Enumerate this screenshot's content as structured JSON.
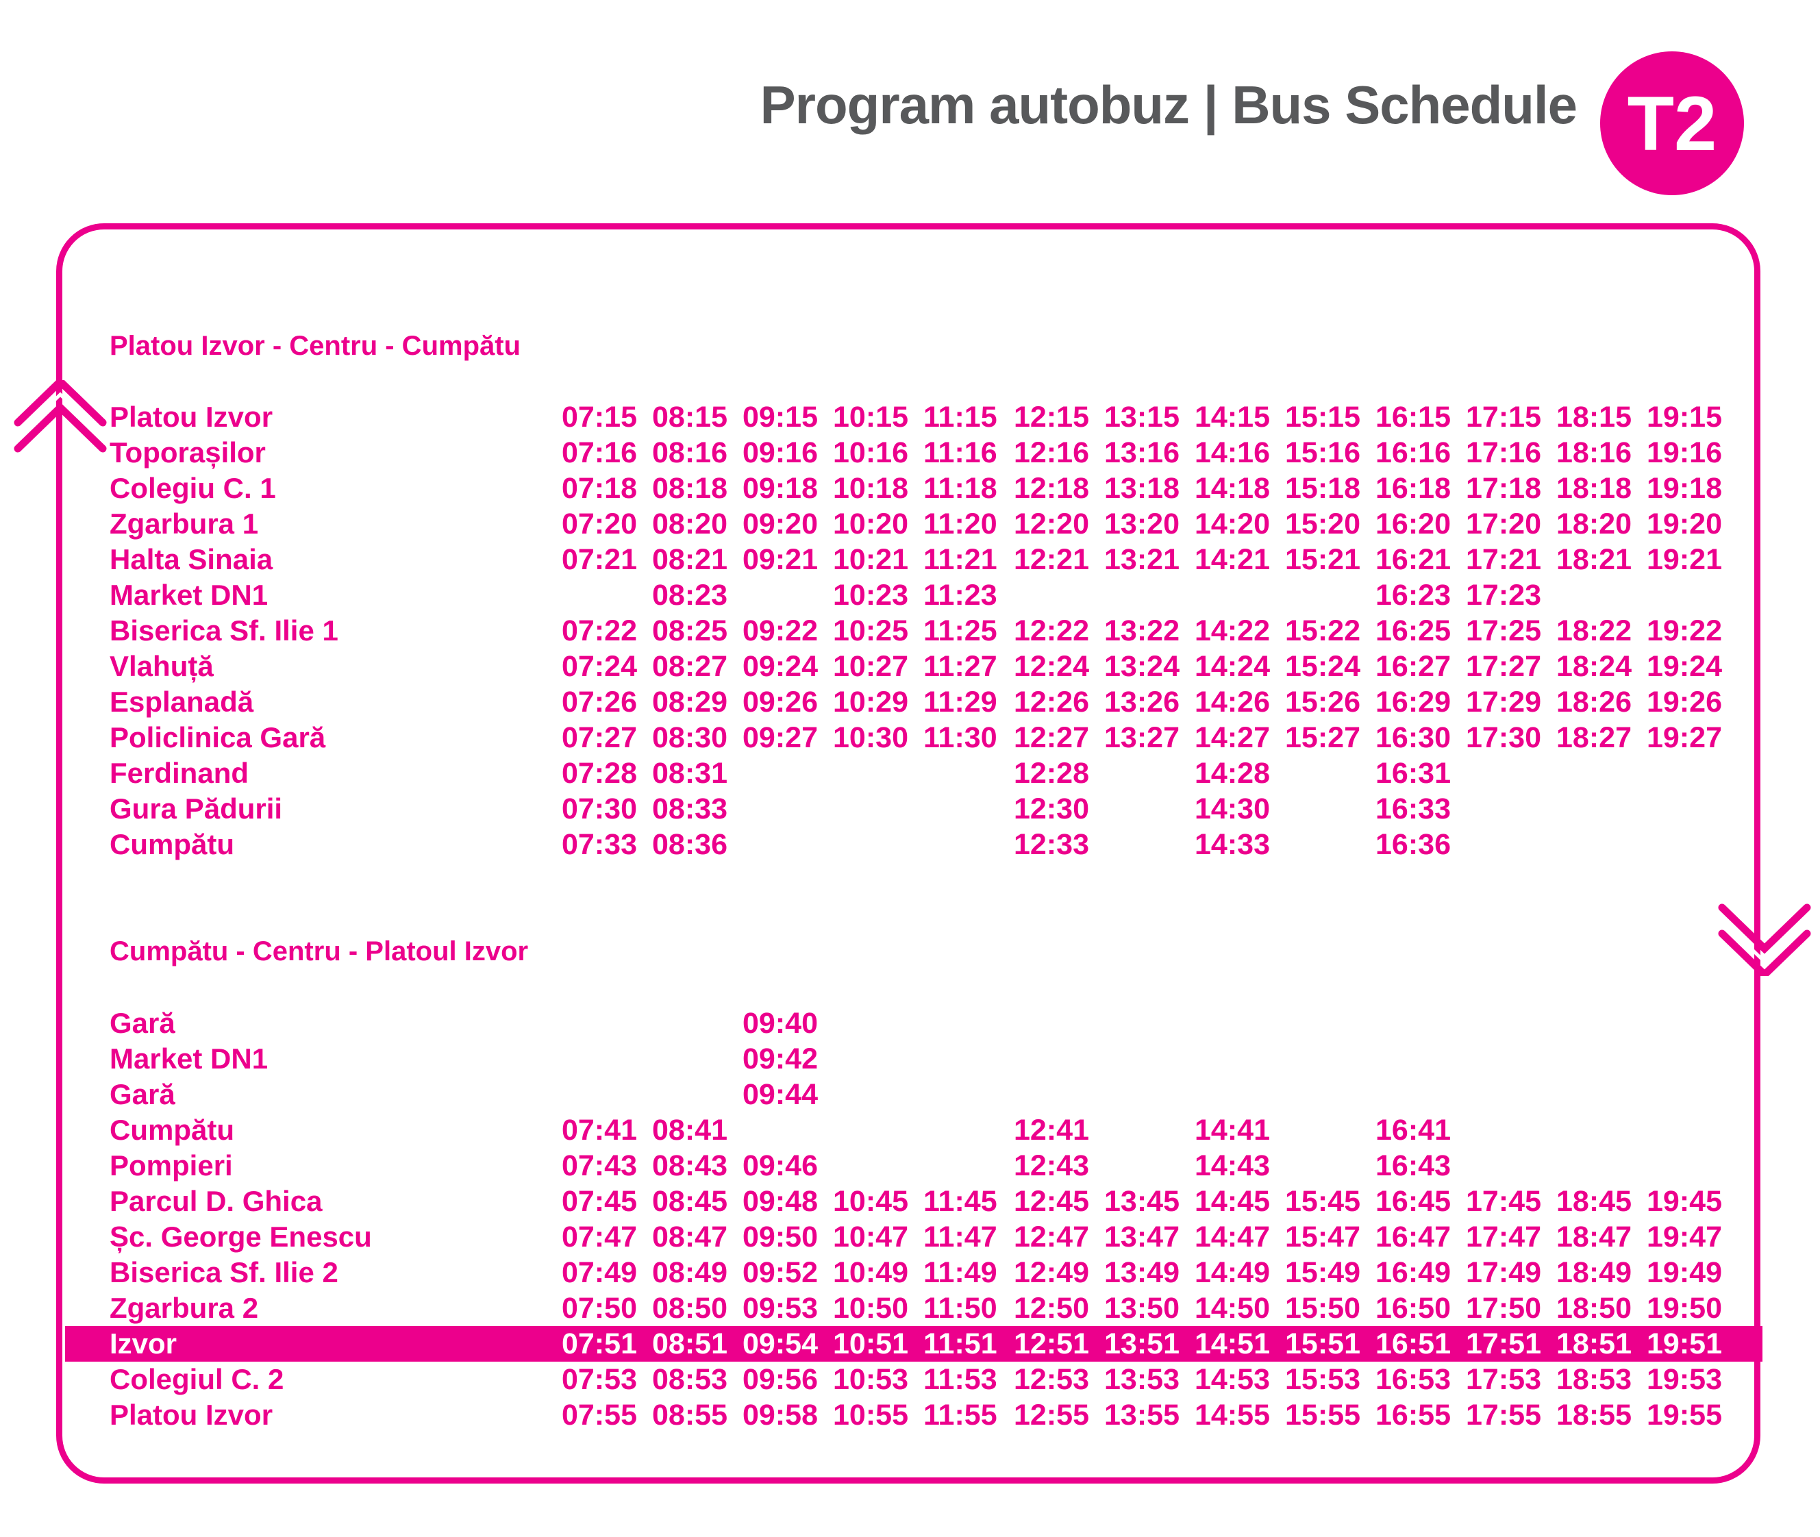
{
  "header": {
    "title": "Program autobuz | Bus Schedule",
    "route_badge": "T2"
  },
  "colors": {
    "accent": "#ec008c",
    "title_gray": "#58595b"
  },
  "sections": [
    {
      "title": "Platou Izvor - Centru - Cumpătu",
      "rows": [
        {
          "stop": "Platou Izvor",
          "times": [
            "07:15",
            "08:15",
            "09:15",
            "10:15",
            "11:15",
            "12:15",
            "13:15",
            "14:15",
            "15:15",
            "16:15",
            "17:15",
            "18:15",
            "19:15"
          ]
        },
        {
          "stop": "Toporașilor",
          "times": [
            "07:16",
            "08:16",
            "09:16",
            "10:16",
            "11:16",
            "12:16",
            "13:16",
            "14:16",
            "15:16",
            "16:16",
            "17:16",
            "18:16",
            "19:16"
          ]
        },
        {
          "stop": "Colegiu C. 1",
          "times": [
            "07:18",
            "08:18",
            "09:18",
            "10:18",
            "11:18",
            "12:18",
            "13:18",
            "14:18",
            "15:18",
            "16:18",
            "17:18",
            "18:18",
            "19:18"
          ]
        },
        {
          "stop": "Zgarbura 1",
          "times": [
            "07:20",
            "08:20",
            "09:20",
            "10:20",
            "11:20",
            "12:20",
            "13:20",
            "14:20",
            "15:20",
            "16:20",
            "17:20",
            "18:20",
            "19:20"
          ]
        },
        {
          "stop": "Halta Sinaia",
          "times": [
            "07:21",
            "08:21",
            "09:21",
            "10:21",
            "11:21",
            "12:21",
            "13:21",
            "14:21",
            "15:21",
            "16:21",
            "17:21",
            "18:21",
            "19:21"
          ]
        },
        {
          "stop": "Market DN1",
          "times": [
            "",
            "08:23",
            "",
            "10:23",
            "11:23",
            "",
            "",
            "",
            "",
            "16:23",
            "17:23",
            "",
            ""
          ]
        },
        {
          "stop": "Biserica Sf. Ilie 1",
          "times": [
            "07:22",
            "08:25",
            "09:22",
            "10:25",
            "11:25",
            "12:22",
            "13:22",
            "14:22",
            "15:22",
            "16:25",
            "17:25",
            "18:22",
            "19:22"
          ]
        },
        {
          "stop": "Vlahuță",
          "times": [
            "07:24",
            "08:27",
            "09:24",
            "10:27",
            "11:27",
            "12:24",
            "13:24",
            "14:24",
            "15:24",
            "16:27",
            "17:27",
            "18:24",
            "19:24"
          ]
        },
        {
          "stop": "Esplanadă",
          "times": [
            "07:26",
            "08:29",
            "09:26",
            "10:29",
            "11:29",
            "12:26",
            "13:26",
            "14:26",
            "15:26",
            "16:29",
            "17:29",
            "18:26",
            "19:26"
          ]
        },
        {
          "stop": "Policlinica Gară",
          "times": [
            "07:27",
            "08:30",
            "09:27",
            "10:30",
            "11:30",
            "12:27",
            "13:27",
            "14:27",
            "15:27",
            "16:30",
            "17:30",
            "18:27",
            "19:27"
          ]
        },
        {
          "stop": "Ferdinand",
          "times": [
            "07:28",
            "08:31",
            "",
            "",
            "",
            "12:28",
            "",
            "14:28",
            "",
            "16:31",
            "",
            "",
            ""
          ]
        },
        {
          "stop": "Gura Pădurii",
          "times": [
            "07:30",
            "08:33",
            "",
            "",
            "",
            "12:30",
            "",
            "14:30",
            "",
            "16:33",
            "",
            "",
            ""
          ]
        },
        {
          "stop": "Cumpătu",
          "times": [
            "07:33",
            "08:36",
            "",
            "",
            "",
            "12:33",
            "",
            "14:33",
            "",
            "16:36",
            "",
            "",
            ""
          ]
        }
      ]
    },
    {
      "title": "Cumpătu - Centru - Platoul Izvor",
      "rows": [
        {
          "stop": "Gară",
          "times": [
            "",
            "",
            "09:40",
            "",
            "",
            "",
            "",
            "",
            "",
            "",
            "",
            "",
            ""
          ]
        },
        {
          "stop": "Market DN1",
          "times": [
            "",
            "",
            "09:42",
            "",
            "",
            "",
            "",
            "",
            "",
            "",
            "",
            "",
            ""
          ]
        },
        {
          "stop": "Gară",
          "times": [
            "",
            "",
            "09:44",
            "",
            "",
            "",
            "",
            "",
            "",
            "",
            "",
            "",
            ""
          ]
        },
        {
          "stop": "Cumpătu",
          "times": [
            "07:41",
            "08:41",
            "",
            "",
            "",
            "12:41",
            "",
            "14:41",
            "",
            "16:41",
            "",
            "",
            ""
          ]
        },
        {
          "stop": "Pompieri",
          "times": [
            "07:43",
            "08:43",
            "09:46",
            "",
            "",
            "12:43",
            "",
            "14:43",
            "",
            "16:43",
            "",
            "",
            ""
          ]
        },
        {
          "stop": "Parcul D. Ghica",
          "times": [
            "07:45",
            "08:45",
            "09:48",
            "10:45",
            "11:45",
            "12:45",
            "13:45",
            "14:45",
            "15:45",
            "16:45",
            "17:45",
            "18:45",
            "19:45"
          ]
        },
        {
          "stop": "Șc. George Enescu",
          "times": [
            "07:47",
            "08:47",
            "09:50",
            "10:47",
            "11:47",
            "12:47",
            "13:47",
            "14:47",
            "15:47",
            "16:47",
            "17:47",
            "18:47",
            "19:47"
          ]
        },
        {
          "stop": "Biserica Sf. Ilie 2",
          "times": [
            "07:49",
            "08:49",
            "09:52",
            "10:49",
            "11:49",
            "12:49",
            "13:49",
            "14:49",
            "15:49",
            "16:49",
            "17:49",
            "18:49",
            "19:49"
          ]
        },
        {
          "stop": "Zgarbura 2",
          "times": [
            "07:50",
            "08:50",
            "09:53",
            "10:50",
            "11:50",
            "12:50",
            "13:50",
            "14:50",
            "15:50",
            "16:50",
            "17:50",
            "18:50",
            "19:50"
          ]
        },
        {
          "stop": "Izvor",
          "highlighted": true,
          "times": [
            "07:51",
            "08:51",
            "09:54",
            "10:51",
            "11:51",
            "12:51",
            "13:51",
            "14:51",
            "15:51",
            "16:51",
            "17:51",
            "18:51",
            "19:51"
          ]
        },
        {
          "stop": "Colegiul C. 2",
          "times": [
            "07:53",
            "08:53",
            "09:56",
            "10:53",
            "11:53",
            "12:53",
            "13:53",
            "14:53",
            "15:53",
            "16:53",
            "17:53",
            "18:53",
            "19:53"
          ]
        },
        {
          "stop": "Platou Izvor",
          "times": [
            "07:55",
            "08:55",
            "09:58",
            "10:55",
            "11:55",
            "12:55",
            "13:55",
            "14:55",
            "15:55",
            "16:55",
            "17:55",
            "18:55",
            "19:55"
          ]
        }
      ]
    }
  ],
  "icons": [
    "chevron-up-icon",
    "chevron-down-icon"
  ]
}
